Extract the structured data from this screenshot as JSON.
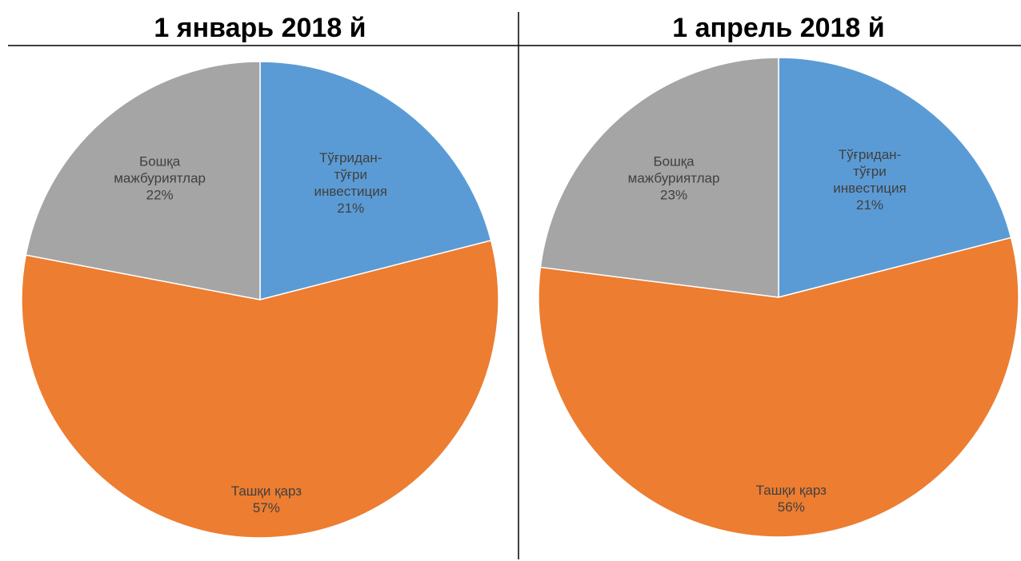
{
  "chart_data": [
    {
      "type": "pie",
      "title": "1 январь 2018 й",
      "categories": [
        "Тўғридан-\nтўғри\nинвестиция",
        "Ташқи қарз",
        "Бошқа\nмажбуриятлар"
      ],
      "values": [
        21,
        57,
        22
      ],
      "value_labels": [
        "21%",
        "57%",
        "22%"
      ],
      "colors": [
        "#5b9bd5",
        "#ed7d31",
        "#a5a5a5"
      ]
    },
    {
      "type": "pie",
      "title": "1 апрель 2018 й",
      "categories": [
        "Тўғридан-\nтўғри\nинвестиция",
        "Ташқи қарз",
        "Бошқа\nмажбуриятлар"
      ],
      "values": [
        21,
        56,
        23
      ],
      "value_labels": [
        "21%",
        "56%",
        "23%"
      ],
      "colors": [
        "#5b9bd5",
        "#ed7d31",
        "#a5a5a5"
      ]
    }
  ]
}
